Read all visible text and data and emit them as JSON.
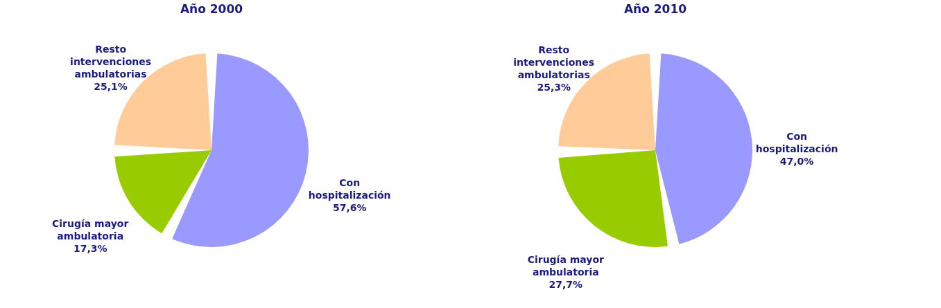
{
  "chart_data": [
    {
      "type": "pie",
      "title": "Año 2000",
      "categories": [
        "Con hospitalización",
        "Cirugía mayor ambulatoria",
        "Resto intervenciones ambulatorias"
      ],
      "values": [
        57.6,
        17.3,
        25.1
      ],
      "colors": [
        "#9999ff",
        "#99cc00",
        "#ffcc99"
      ],
      "value_labels": [
        "57,6%",
        "17,3%",
        "25,1%"
      ],
      "legend": false
    },
    {
      "type": "pie",
      "title": "Año 2010",
      "categories": [
        "Con hospitalización",
        "Cirugía mayor ambulatoria",
        "Resto intervenciones ambulatorias"
      ],
      "values": [
        47.0,
        27.7,
        25.3
      ],
      "colors": [
        "#9999ff",
        "#99cc00",
        "#ffcc99"
      ],
      "value_labels": [
        "47,0%",
        "27,7%",
        "25,3%"
      ],
      "legend": false
    }
  ]
}
